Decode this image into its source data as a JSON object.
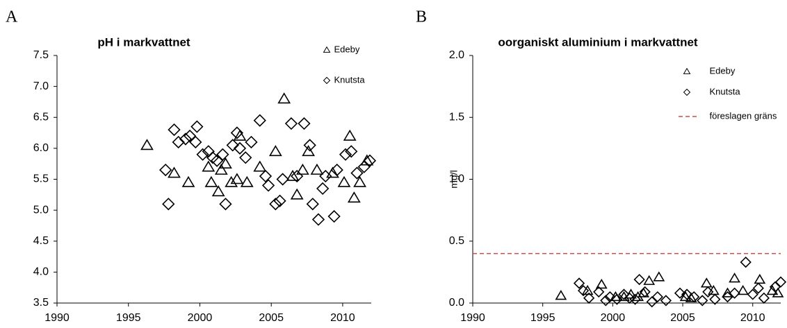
{
  "chart_data": [
    {
      "type": "scatter",
      "panel": "A",
      "title": "pH i markvattnet",
      "xlim": [
        1990,
        2012
      ],
      "xticks": [
        1990,
        1995,
        2000,
        2005,
        2010
      ],
      "ylim": [
        3.5,
        7.5
      ],
      "yticks": [
        3.5,
        {
          "value": 4,
          "label": "4.0"
        },
        4.5,
        {
          "value": 5,
          "label": "5.0"
        },
        5.5,
        {
          "value": 6,
          "label": "6.0"
        },
        6.5,
        {
          "value": 7,
          "label": "7.0"
        },
        7.5
      ],
      "grid": false,
      "legend": "upper right",
      "series": [
        {
          "name": "Edeby",
          "marker": "triangle",
          "color": "#000000",
          "x": [
            1996.3,
            1998.2,
            1999.2,
            2000.6,
            2000.8,
            2001.3,
            2001.5,
            2001.8,
            2002.2,
            2002.6,
            2002.8,
            2003.3,
            2004.2,
            2005.3,
            2005.9,
            2006.5,
            2006.8,
            2007.2,
            2007.6,
            2008.2,
            2009.3,
            2010.1,
            2010.5,
            2010.8,
            2011.2,
            2011.7
          ],
          "values": [
            6.05,
            5.6,
            5.45,
            5.7,
            5.45,
            5.3,
            5.65,
            5.75,
            5.45,
            5.5,
            6.2,
            5.45,
            5.7,
            5.95,
            6.8,
            5.55,
            5.25,
            5.65,
            5.95,
            5.65,
            5.6,
            5.45,
            6.2,
            5.2,
            5.45,
            5.8
          ]
        },
        {
          "name": "Knutsta",
          "marker": "diamond",
          "color": "#000000",
          "x": [
            1997.6,
            1997.8,
            1998.2,
            1998.5,
            1999.0,
            1999.3,
            1999.7,
            1999.8,
            2000.2,
            2000.6,
            2000.9,
            2001.2,
            2001.6,
            2001.8,
            2002.3,
            2002.6,
            2002.8,
            2003.2,
            2003.6,
            2004.2,
            2004.6,
            2004.8,
            2005.3,
            2005.6,
            2005.8,
            2006.4,
            2006.8,
            2007.3,
            2007.7,
            2007.9,
            2008.3,
            2008.6,
            2008.8,
            2009.4,
            2009.6,
            2010.2,
            2010.6,
            2011.0,
            2011.5,
            2011.9
          ],
          "values": [
            5.65,
            5.1,
            6.3,
            6.1,
            6.15,
            6.2,
            6.1,
            6.35,
            5.9,
            5.95,
            5.85,
            5.8,
            5.9,
            5.1,
            6.05,
            6.25,
            6.0,
            5.85,
            6.1,
            6.45,
            5.55,
            5.4,
            5.1,
            5.15,
            5.5,
            6.4,
            5.55,
            6.4,
            6.05,
            5.1,
            4.85,
            5.35,
            5.55,
            4.9,
            5.65,
            5.9,
            5.95,
            5.6,
            5.7,
            5.8
          ]
        }
      ]
    },
    {
      "type": "scatter",
      "panel": "B",
      "title": "oorganiskt aluminium i markvattnet",
      "y_label": "mg/l",
      "xlim": [
        1990,
        2012
      ],
      "xticks": [
        1990,
        1995,
        2000,
        2005,
        2010
      ],
      "ylim": [
        0,
        2
      ],
      "yticks": [
        {
          "value": 0,
          "label": "0.0"
        },
        0.5,
        {
          "value": 1,
          "label": "1.0"
        },
        1.5,
        {
          "value": 2,
          "label": "2.0"
        }
      ],
      "grid": false,
      "legend": "upper right",
      "series": [
        {
          "name": "Edeby",
          "marker": "triangle",
          "color": "#000000",
          "x": [
            1996.3,
            1998.2,
            1999.2,
            2000.2,
            2000.8,
            2001.3,
            2001.8,
            2002.2,
            2002.6,
            2003.3,
            2005.2,
            2005.6,
            2006.7,
            2007.2,
            2008.2,
            2008.7,
            2009.3,
            2010.5,
            2011.4,
            2011.8
          ],
          "values": [
            0.06,
            0.1,
            0.15,
            0.05,
            0.05,
            0.07,
            0.05,
            0.08,
            0.18,
            0.21,
            0.05,
            0.04,
            0.16,
            0.1,
            0.08,
            0.2,
            0.1,
            0.19,
            0.1,
            0.08
          ]
        },
        {
          "name": "Knutsta",
          "marker": "diamond",
          "color": "#000000",
          "x": [
            1997.6,
            1997.9,
            1998.3,
            1999.0,
            1999.5,
            1999.8,
            2000.3,
            2000.8,
            2001.2,
            2001.6,
            2001.9,
            2002.3,
            2002.8,
            2003.2,
            2003.8,
            2004.8,
            2005.3,
            2005.8,
            2006.4,
            2006.8,
            2007.3,
            2008.2,
            2008.7,
            2009.5,
            2010.0,
            2010.4,
            2010.8,
            2011.6,
            2012.0
          ],
          "values": [
            0.16,
            0.1,
            0.04,
            0.09,
            0.02,
            0.05,
            0.03,
            0.07,
            0.04,
            0.03,
            0.19,
            0.09,
            0.01,
            0.05,
            0.02,
            0.08,
            0.07,
            0.05,
            0.02,
            0.09,
            0.03,
            0.05,
            0.08,
            0.33,
            0.07,
            0.12,
            0.04,
            0.13,
            0.17
          ]
        }
      ],
      "reference_lines": [
        {
          "name": "föreslagen gräns",
          "value": 0.4,
          "color": "#c0504d",
          "dashed": true
        }
      ]
    }
  ]
}
